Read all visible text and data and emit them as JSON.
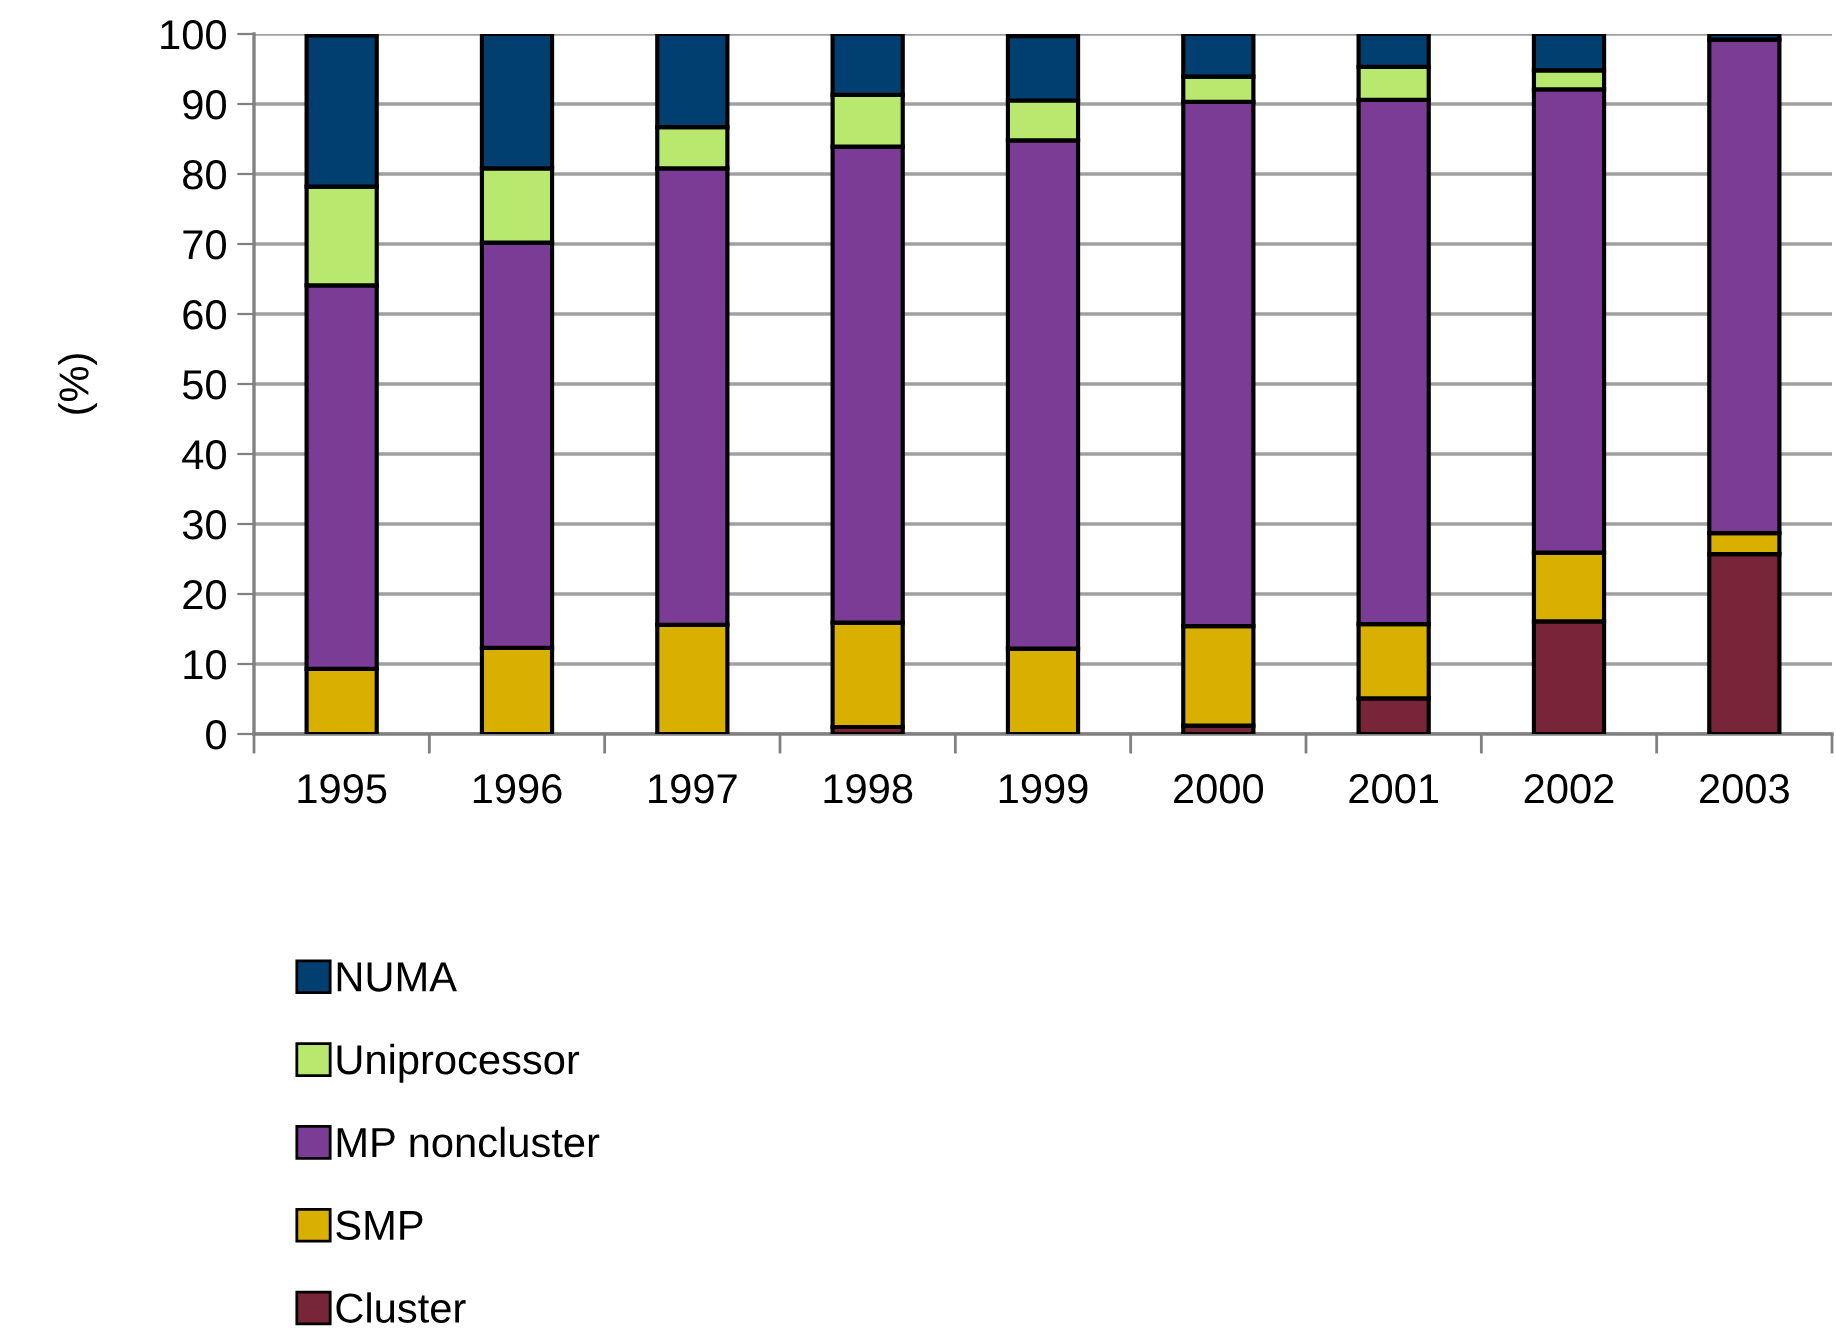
{
  "chart_data": {
    "type": "bar",
    "stacked": true,
    "ylabel": "(%)",
    "categories": [
      "1995",
      "1996",
      "1997",
      "1998",
      "1999",
      "2000",
      "2001",
      "2002",
      "2003"
    ],
    "series": [
      {
        "name": "Cluster",
        "color": "#78253a",
        "values": [
          null,
          0,
          0,
          1.0,
          null,
          1.2,
          5.1,
          16.1,
          25.7
        ]
      },
      {
        "name": "SMP",
        "color": "#d9b000",
        "values": [
          9.3,
          12.3,
          15.6,
          14.9,
          12.2,
          14.2,
          10.6,
          9.8,
          3.0
        ]
      },
      {
        "name": "MP noncluster",
        "color": "#7b3c96",
        "values": [
          54.8,
          57.9,
          65.2,
          68.0,
          72.6,
          74.9,
          74.9,
          66.2,
          70.5
        ]
      },
      {
        "name": "Uniprocessor",
        "color": "#b9e86e",
        "values": [
          14.1,
          10.6,
          5.9,
          7.4,
          5.7,
          3.6,
          4.7,
          2.7,
          0
        ]
      },
      {
        "name": "NUMA",
        "color": "#003f6f",
        "values": [
          21.6,
          19.2,
          13.3,
          8.7,
          9.2,
          6.1,
          4.7,
          5.2,
          0.8
        ]
      }
    ],
    "ylim": [
      0,
      100
    ],
    "yticks": [
      0,
      10,
      20,
      30,
      40,
      50,
      60,
      70,
      80,
      90,
      100
    ],
    "grid": "y",
    "legend": "bottom"
  }
}
